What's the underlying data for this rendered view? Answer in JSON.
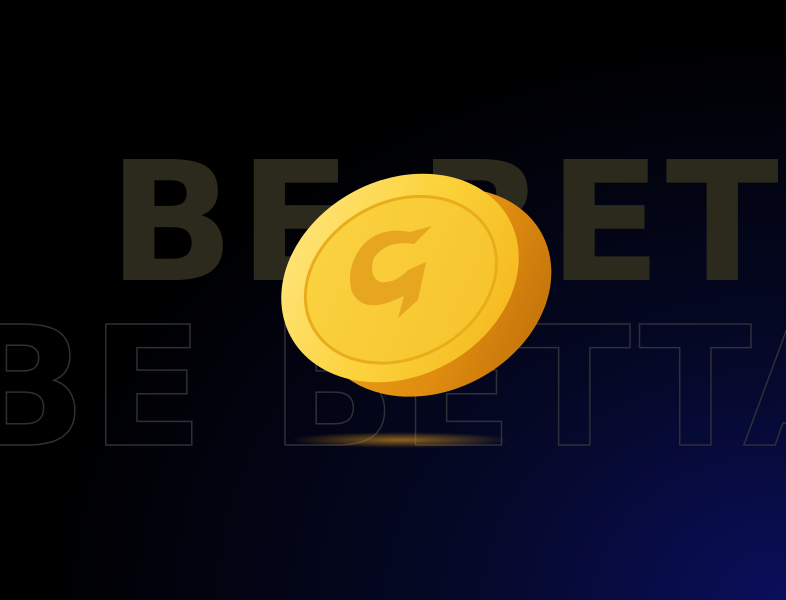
{
  "headline_filled": "BE BETTA",
  "headline_outline": "BE BETTA"
}
